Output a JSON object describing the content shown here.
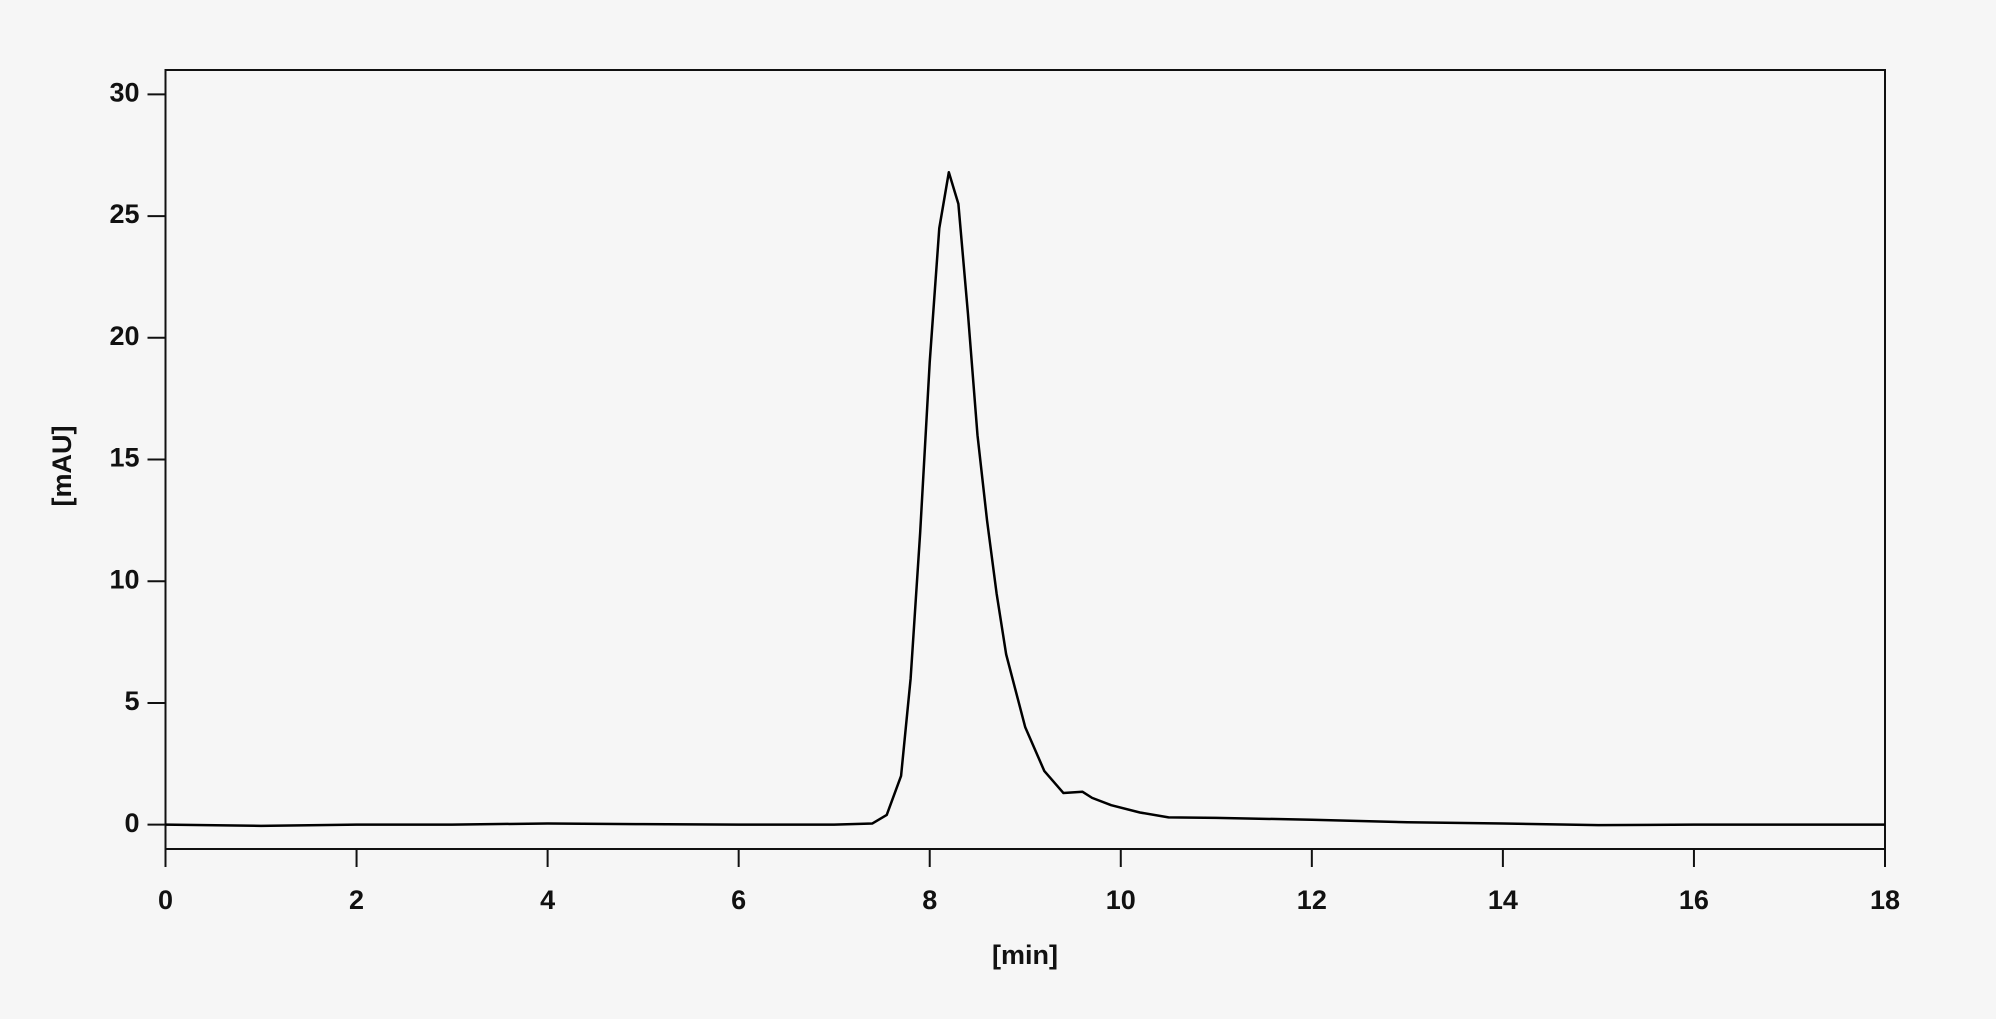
{
  "chart_data": {
    "type": "line",
    "xlabel": "[min]",
    "ylabel": "[mAU]",
    "x": [
      0,
      1,
      2,
      3,
      4,
      5,
      6,
      7,
      7.4,
      7.55,
      7.7,
      7.8,
      7.9,
      8.0,
      8.1,
      8.2,
      8.3,
      8.4,
      8.5,
      8.6,
      8.7,
      8.8,
      9.0,
      9.2,
      9.4,
      9.6,
      9.7,
      9.9,
      10.2,
      10.5,
      11,
      12,
      13,
      14,
      15,
      16,
      17,
      18
    ],
    "values": [
      0,
      -0.05,
      0,
      0,
      0.05,
      0.02,
      0,
      0,
      0.05,
      0.4,
      2,
      6,
      12,
      19,
      24.5,
      26.8,
      25.5,
      21,
      16,
      12.5,
      9.5,
      7,
      4,
      2.2,
      1.3,
      1.35,
      1.1,
      0.8,
      0.5,
      0.3,
      0.28,
      0.2,
      0.1,
      0.05,
      -0.02,
      0,
      0,
      0
    ],
    "color": "#000000",
    "xlim": [
      0,
      18
    ],
    "xticks": [
      0,
      2,
      4,
      6,
      8,
      10,
      12,
      14,
      16,
      18
    ],
    "ylim": [
      -1,
      31
    ],
    "yticks": [
      0,
      5,
      10,
      15,
      20,
      25,
      30
    ],
    "grid": false
  }
}
